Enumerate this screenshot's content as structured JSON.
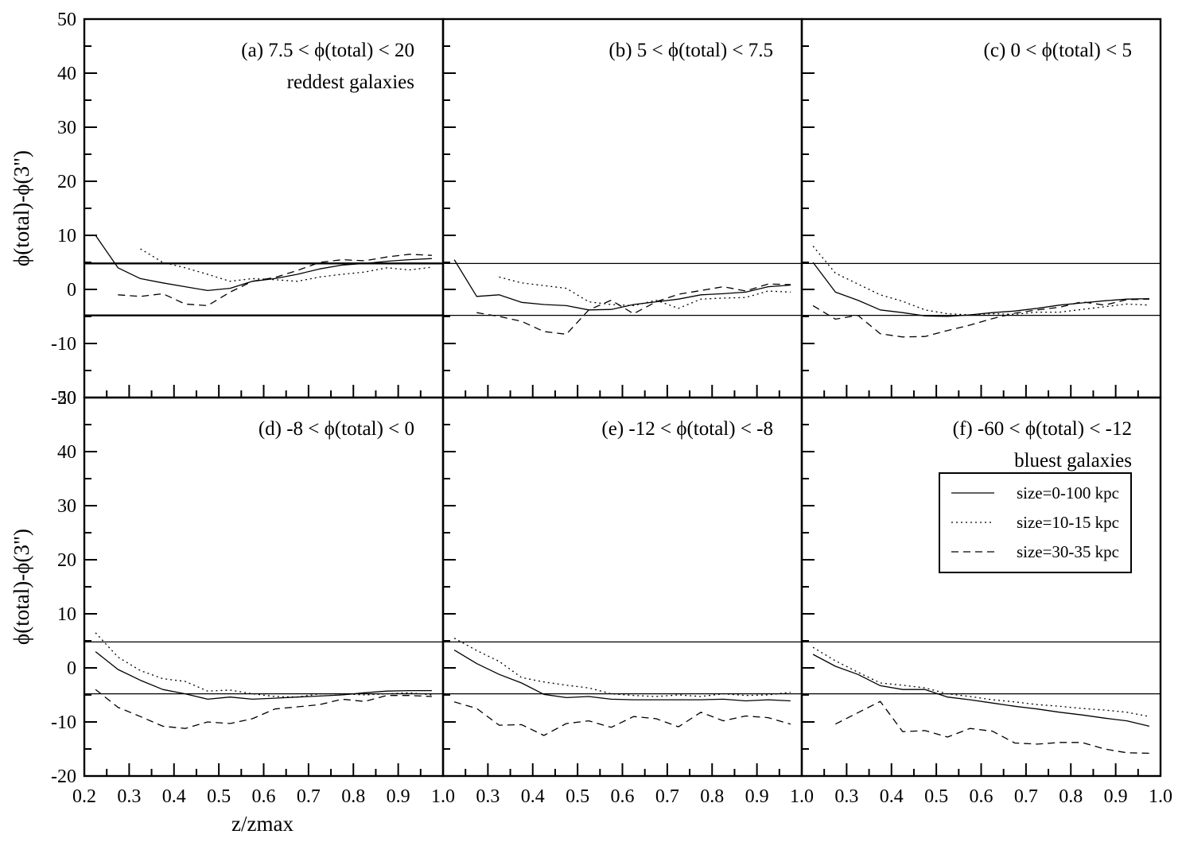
{
  "chart_data": {
    "type": "line",
    "xlabel": "z/zmax",
    "ylabel": "ϕ(total)-ϕ(3\")",
    "xlim": [
      0.2,
      1.0
    ],
    "ylim": [
      -20,
      50
    ],
    "x_ticks": [
      "0.2",
      "0.3",
      "0.4",
      "0.5",
      "0.6",
      "0.7",
      "0.8",
      "0.9",
      "1.0"
    ],
    "y_ticks": [
      "50",
      "40",
      "30",
      "20",
      "10",
      "0",
      "-10",
      "-20"
    ],
    "reference_lines": [
      4.8,
      -4.8
    ],
    "legend": {
      "placement": "panel (f), right",
      "entries": [
        {
          "name": "size=0-100 kpc",
          "style": "solid"
        },
        {
          "name": "size=10-15 kpc",
          "style": "dotted"
        },
        {
          "name": "size=30-35 kpc",
          "style": "dashed"
        }
      ]
    },
    "panels": [
      {
        "label": "(a) 7.5 < ϕ(total) < 20",
        "sublabel": "reddest galaxies",
        "series": [
          {
            "style": "solid",
            "x": [
              0.225,
              0.275,
              0.325,
              0.375,
              0.425,
              0.475,
              0.525,
              0.575,
              0.625,
              0.675,
              0.725,
              0.775,
              0.825,
              0.875,
              0.925,
              0.975
            ],
            "y": [
              10,
              4,
              2,
              1.2,
              0.5,
              -0.2,
              0.2,
              1.5,
              2,
              2.8,
              3.8,
              4.5,
              4.8,
              5.2,
              5.5,
              5.7
            ]
          },
          {
            "style": "dotted",
            "x": [
              0.325,
              0.375,
              0.425,
              0.475,
              0.525,
              0.575,
              0.625,
              0.675,
              0.725,
              0.775,
              0.825,
              0.875,
              0.925,
              0.975
            ],
            "y": [
              7.5,
              5,
              4,
              2.8,
              1.5,
              2,
              1.8,
              1.5,
              2.3,
              2.8,
              3.2,
              4,
              3.6,
              4.1
            ]
          },
          {
            "style": "dashed",
            "x": [
              0.275,
              0.325,
              0.375,
              0.425,
              0.475,
              0.525,
              0.575,
              0.625,
              0.675,
              0.725,
              0.775,
              0.825,
              0.875,
              0.925,
              0.975
            ],
            "y": [
              -1,
              -1.3,
              -0.8,
              -2.7,
              -3,
              -0.5,
              1.5,
              2.2,
              3.5,
              5,
              5.5,
              5.3,
              6,
              6.5,
              6.3
            ]
          }
        ]
      },
      {
        "label": "(b) 5 < ϕ(total) < 7.5",
        "sublabel": "",
        "series": [
          {
            "style": "solid",
            "x": [
              0.225,
              0.275,
              0.325,
              0.375,
              0.425,
              0.475,
              0.525,
              0.575,
              0.625,
              0.675,
              0.725,
              0.775,
              0.825,
              0.875,
              0.925,
              0.975
            ],
            "y": [
              5.5,
              -1.3,
              -1,
              -2.4,
              -2.8,
              -3,
              -3.8,
              -3.7,
              -2.8,
              -2.3,
              -1.8,
              -1,
              -0.8,
              -0.5,
              0.5,
              0.8
            ]
          },
          {
            "style": "dotted",
            "x": [
              0.325,
              0.375,
              0.425,
              0.475,
              0.525,
              0.575,
              0.625,
              0.675,
              0.725,
              0.775,
              0.825,
              0.875,
              0.925,
              0.975
            ],
            "y": [
              2.3,
              1.2,
              0.7,
              0.2,
              -2.3,
              -2.8,
              -3,
              -2,
              -3.5,
              -1.8,
              -1.6,
              -1.5,
              -0.3,
              -0.5
            ]
          },
          {
            "style": "dashed",
            "x": [
              0.275,
              0.325,
              0.375,
              0.425,
              0.475,
              0.525,
              0.575,
              0.625,
              0.675,
              0.725,
              0.775,
              0.825,
              0.875,
              0.925,
              0.975
            ],
            "y": [
              -4.3,
              -5,
              -5.9,
              -7.8,
              -8.3,
              -3.8,
              -2,
              -4.5,
              -2.3,
              -0.9,
              -0.2,
              0.5,
              -0.3,
              1,
              0.9
            ]
          }
        ]
      },
      {
        "label": "(c) 0 < ϕ(total) < 5",
        "sublabel": "",
        "series": [
          {
            "style": "solid",
            "x": [
              0.225,
              0.275,
              0.325,
              0.375,
              0.425,
              0.475,
              0.525,
              0.575,
              0.625,
              0.675,
              0.725,
              0.775,
              0.825,
              0.875,
              0.925,
              0.975
            ],
            "y": [
              5,
              -0.5,
              -2,
              -3.8,
              -4.3,
              -4.9,
              -5,
              -4.7,
              -4.3,
              -4,
              -3.5,
              -2.9,
              -2.5,
              -2.1,
              -1.8,
              -1.7
            ]
          },
          {
            "style": "dotted",
            "x": [
              0.225,
              0.275,
              0.325,
              0.375,
              0.425,
              0.475,
              0.525,
              0.575,
              0.625,
              0.675,
              0.725,
              0.775,
              0.825,
              0.875,
              0.925,
              0.975
            ],
            "y": [
              8,
              3,
              1,
              -1,
              -2.2,
              -3.8,
              -4.5,
              -4.7,
              -4.5,
              -4.6,
              -4.2,
              -4.2,
              -3.7,
              -3.2,
              -2.7,
              -2.9
            ]
          },
          {
            "style": "dashed",
            "x": [
              0.225,
              0.275,
              0.325,
              0.375,
              0.425,
              0.475,
              0.525,
              0.575,
              0.625,
              0.675,
              0.725,
              0.775,
              0.825,
              0.875,
              0.925,
              0.975
            ],
            "y": [
              -3,
              -5.5,
              -4.8,
              -8.2,
              -8.8,
              -8.7,
              -7.6,
              -6.6,
              -5.4,
              -4.4,
              -3.8,
              -3.3,
              -2.3,
              -2.9,
              -1.9,
              -1.8
            ]
          }
        ]
      },
      {
        "label": "(d) -8 < ϕ(total) < 0",
        "sublabel": "",
        "series": [
          {
            "style": "solid",
            "x": [
              0.225,
              0.275,
              0.325,
              0.375,
              0.425,
              0.475,
              0.525,
              0.575,
              0.625,
              0.675,
              0.725,
              0.775,
              0.825,
              0.875,
              0.925,
              0.975
            ],
            "y": [
              3,
              -0.3,
              -2.3,
              -4,
              -4.8,
              -5.8,
              -5.4,
              -5.8,
              -5.6,
              -5.4,
              -5.2,
              -5,
              -4.6,
              -4.3,
              -4.2,
              -4.2
            ]
          },
          {
            "style": "dotted",
            "x": [
              0.225,
              0.275,
              0.325,
              0.375,
              0.425,
              0.475,
              0.525,
              0.575,
              0.625,
              0.675,
              0.725,
              0.775,
              0.825,
              0.875,
              0.925,
              0.975
            ],
            "y": [
              6.5,
              2,
              -0.5,
              -2,
              -2.5,
              -4.3,
              -4.1,
              -4.8,
              -5.3,
              -5.4,
              -4.8,
              -4.8,
              -5,
              -4.8,
              -4.6,
              -5
            ]
          },
          {
            "style": "dashed",
            "x": [
              0.225,
              0.275,
              0.325,
              0.375,
              0.425,
              0.475,
              0.525,
              0.575,
              0.625,
              0.675,
              0.725,
              0.775,
              0.825,
              0.875,
              0.925,
              0.975
            ],
            "y": [
              -4,
              -7.3,
              -9,
              -10.8,
              -11.2,
              -10,
              -10.3,
              -9.4,
              -7.6,
              -7.2,
              -6.8,
              -5.8,
              -6.2,
              -5.1,
              -5.1,
              -5.3
            ]
          }
        ]
      },
      {
        "label": "(e) -12 < ϕ(total) < -8",
        "sublabel": "",
        "series": [
          {
            "style": "solid",
            "x": [
              0.225,
              0.275,
              0.325,
              0.375,
              0.425,
              0.475,
              0.525,
              0.575,
              0.625,
              0.675,
              0.725,
              0.775,
              0.825,
              0.875,
              0.925,
              0.975
            ],
            "y": [
              3.3,
              0.8,
              -1.2,
              -2.8,
              -4.9,
              -5.5,
              -5.3,
              -5.8,
              -5.9,
              -5.9,
              -5.9,
              -5.9,
              -5.8,
              -6.1,
              -5.9,
              -6.1
            ]
          },
          {
            "style": "dotted",
            "x": [
              0.225,
              0.275,
              0.325,
              0.375,
              0.425,
              0.475,
              0.525,
              0.575,
              0.625,
              0.675,
              0.725,
              0.775,
              0.825,
              0.875,
              0.925,
              0.975
            ],
            "y": [
              5.5,
              3.2,
              1.2,
              -1.8,
              -2.6,
              -3.2,
              -3.7,
              -4.8,
              -5.1,
              -5.3,
              -5,
              -5.3,
              -4.8,
              -5.1,
              -5,
              -4.5
            ]
          },
          {
            "style": "dashed",
            "x": [
              0.225,
              0.275,
              0.325,
              0.375,
              0.425,
              0.475,
              0.525,
              0.575,
              0.625,
              0.675,
              0.725,
              0.775,
              0.825,
              0.875,
              0.925,
              0.975
            ],
            "y": [
              -6.3,
              -7.5,
              -10.6,
              -10.5,
              -12.5,
              -10.3,
              -9.8,
              -11,
              -9,
              -9.4,
              -10.9,
              -8.2,
              -9.8,
              -8.9,
              -9.2,
              -10.4
            ]
          }
        ]
      },
      {
        "label": "(f) -60 < ϕ(total) < -12",
        "sublabel": "bluest galaxies",
        "series": [
          {
            "style": "solid",
            "x": [
              0.225,
              0.275,
              0.325,
              0.375,
              0.425,
              0.475,
              0.525,
              0.575,
              0.625,
              0.675,
              0.725,
              0.775,
              0.825,
              0.875,
              0.925,
              0.975
            ],
            "y": [
              2.5,
              0.3,
              -1.2,
              -3.3,
              -4,
              -4,
              -5.4,
              -5.9,
              -6.5,
              -7.1,
              -7.6,
              -8.2,
              -8.7,
              -9.3,
              -9.8,
              -10.8
            ]
          },
          {
            "style": "dotted",
            "x": [
              0.225,
              0.275,
              0.325,
              0.375,
              0.425,
              0.475,
              0.525,
              0.575,
              0.625,
              0.675,
              0.725,
              0.775,
              0.825,
              0.875,
              0.925,
              0.975
            ],
            "y": [
              3.8,
              1.3,
              -0.8,
              -2.8,
              -3.2,
              -3.7,
              -4.8,
              -5.3,
              -5.9,
              -6.3,
              -6.8,
              -7.1,
              -7.5,
              -7.8,
              -8.2,
              -9
            ]
          },
          {
            "style": "dashed",
            "x": [
              0.275,
              0.325,
              0.375,
              0.425,
              0.475,
              0.525,
              0.575,
              0.625,
              0.675,
              0.725,
              0.775,
              0.825,
              0.875,
              0.925,
              0.975
            ],
            "y": [
              -10.4,
              -8.3,
              -6.2,
              -11.8,
              -11.6,
              -12.8,
              -11.2,
              -11.7,
              -13.9,
              -14.1,
              -13.8,
              -13.8,
              -15,
              -15.7,
              -15.8
            ]
          }
        ]
      }
    ]
  }
}
